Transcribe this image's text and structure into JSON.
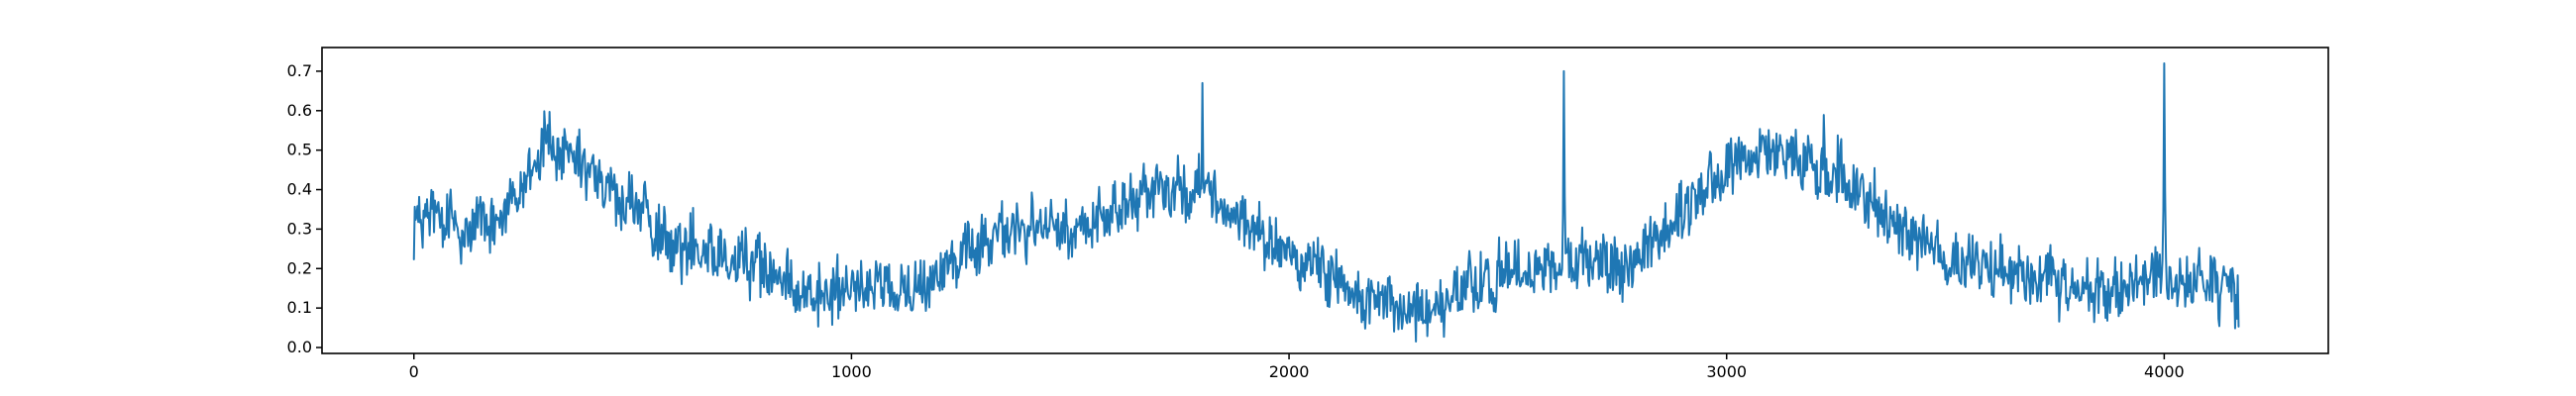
{
  "chart_data": {
    "type": "line",
    "title": "",
    "xlabel": "",
    "ylabel": "",
    "xlim": [
      -210,
      4375
    ],
    "ylim": [
      -0.015,
      0.76
    ],
    "xticks": [
      0,
      1000,
      2000,
      3000,
      4000
    ],
    "xtick_labels": [
      "0",
      "1000",
      "2000",
      "3000",
      "4000"
    ],
    "yticks": [
      0.0,
      0.1,
      0.2,
      0.3,
      0.4,
      0.5,
      0.6,
      0.7
    ],
    "ytick_labels": [
      "0.0",
      "0.1",
      "0.2",
      "0.3",
      "0.4",
      "0.5",
      "0.6",
      "0.7"
    ],
    "grid": false,
    "legend": "none",
    "series": [
      {
        "color": "#1f77b4",
        "x": [
          0,
          50,
          100,
          150,
          200,
          250,
          300,
          350,
          400,
          450,
          500,
          550,
          600,
          650,
          700,
          750,
          800,
          850,
          900,
          950,
          1000,
          1050,
          1100,
          1150,
          1200,
          1250,
          1300,
          1350,
          1400,
          1450,
          1500,
          1550,
          1600,
          1650,
          1700,
          1750,
          1800,
          1850,
          1900,
          1950,
          2000,
          2050,
          2100,
          2150,
          2200,
          2250,
          2300,
          2350,
          2400,
          2450,
          2500,
          2550,
          2600,
          2620,
          2650,
          2700,
          2750,
          2800,
          2850,
          2900,
          2950,
          3000,
          3050,
          3100,
          3150,
          3200,
          3250,
          3300,
          3350,
          3400,
          3450,
          3500,
          3550,
          3600,
          3650,
          3700,
          3750,
          3800,
          3850,
          3900,
          3950,
          3980,
          4000,
          4050,
          4100,
          4150,
          4170
        ],
        "y": [
          0.31,
          0.33,
          0.3,
          0.32,
          0.33,
          0.4,
          0.52,
          0.47,
          0.44,
          0.38,
          0.36,
          0.3,
          0.24,
          0.27,
          0.25,
          0.22,
          0.2,
          0.17,
          0.14,
          0.13,
          0.14,
          0.16,
          0.14,
          0.17,
          0.2,
          0.22,
          0.26,
          0.29,
          0.3,
          0.3,
          0.29,
          0.31,
          0.34,
          0.38,
          0.4,
          0.41,
          0.42,
          0.36,
          0.3,
          0.27,
          0.24,
          0.21,
          0.18,
          0.14,
          0.12,
          0.1,
          0.08,
          0.1,
          0.15,
          0.17,
          0.19,
          0.2,
          0.18,
          0.22,
          0.2,
          0.22,
          0.2,
          0.24,
          0.28,
          0.34,
          0.4,
          0.45,
          0.47,
          0.49,
          0.48,
          0.46,
          0.44,
          0.4,
          0.35,
          0.31,
          0.27,
          0.22,
          0.2,
          0.2,
          0.2,
          0.17,
          0.16,
          0.14,
          0.14,
          0.15,
          0.16,
          0.2,
          0.19,
          0.17,
          0.16,
          0.14,
          0.13
        ]
      }
    ],
    "spikes": [
      {
        "x": 1802,
        "y": 0.67
      },
      {
        "x": 2627,
        "y": 0.7
      },
      {
        "x": 4000,
        "y": 0.72
      }
    ]
  }
}
